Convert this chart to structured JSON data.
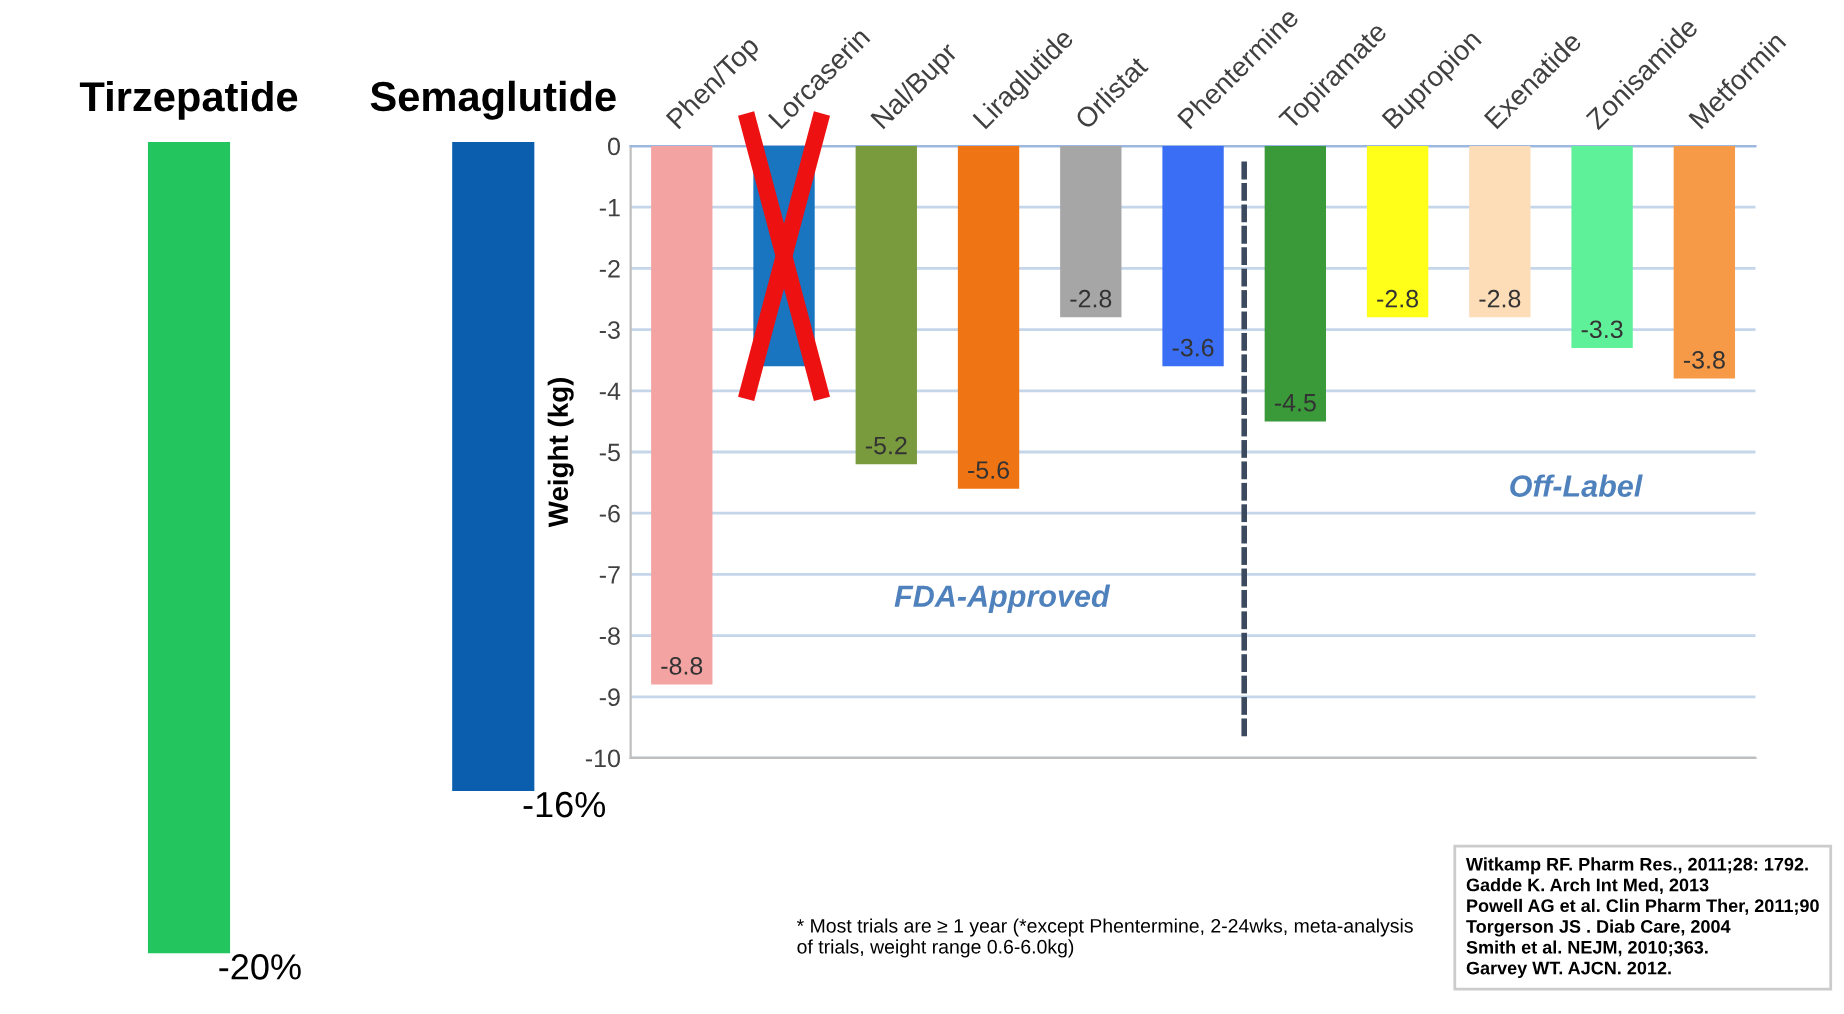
{
  "chart_data": [
    {
      "type": "bar",
      "categories": [
        "Tirzepatide",
        "Semaglutide"
      ],
      "values": [
        -20,
        -16
      ],
      "colors": [
        "#22c55e",
        "#0b5ead"
      ],
      "value_labels": [
        "-20%",
        "-16%"
      ],
      "tick_labels": "x"
    },
    {
      "type": "bar",
      "ylabel": "Weight (kg)",
      "categories": [
        "Phen/Top",
        "Lorcaserin",
        "Nal/Bupr",
        "Liraglutide",
        "Orlistat",
        "Phentermine",
        "Topiramate",
        "Bupropion",
        "Exenatide",
        "Zonisamide",
        "Metformin"
      ],
      "values": [
        -8.8,
        -3.6,
        -5.2,
        -5.6,
        -2.8,
        -3.6,
        -4.5,
        -2.8,
        -2.8,
        -3.3,
        -3.8
      ],
      "colors": [
        "#f4a3a3",
        "#1a75c0",
        "#7a9a3e",
        "#ef7414",
        "#a6a6a6",
        "#3a6ef5",
        "#3a9a3a",
        "#ffff1a",
        "#fddcb8",
        "#5ff09a",
        "#f79a48"
      ],
      "value_labels": [
        "-8.8",
        null,
        "-5.2",
        "-5.6",
        "-2.8",
        "-3.6",
        "-4.5",
        "-2.8",
        "-2.8",
        "-3.3",
        "-3.8"
      ],
      "ylim": [
        -10,
        0
      ],
      "yticks": [
        0,
        -1,
        -2,
        -3,
        -4,
        -5,
        -6,
        -7,
        -8,
        -9,
        -10
      ],
      "grid": "y",
      "annotations": [
        "FDA-Approved",
        "Off-Label",
        "* Most trials are ≥ 1 year (*except Phentermine, 2-24wks, meta-analysis\nof trials, weight range 0.6-6.0kg)",
        "Witkamp RF. Pharm Res., 2011;28: 1792.\nGadde K. Arch Int Med, 2013\nPowell AG et al. Clin Pharm Ther, 2011;90\nTorgerson JS . Diab Care, 2004\nSmith et al. NEJM, 2010;363.\nGarvey WT. AJCN. 2012."
      ]
    }
  ]
}
